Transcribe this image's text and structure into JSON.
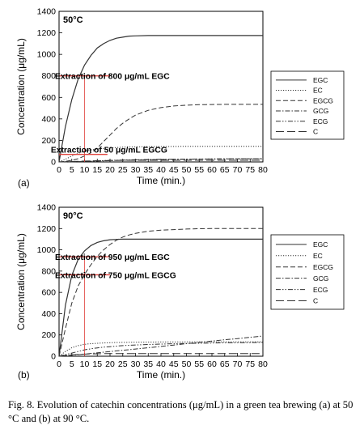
{
  "caption": "Fig. 8. Evolution of catechin concentrations (μg/mL) in a green tea brewing (a) at 50 °C and (b) at 90 °C.",
  "chart_data": [
    {
      "type": "line",
      "panel_label": "(a)",
      "inset_label": "50°C",
      "xlabel": "Time (min.)",
      "ylabel": "Concentration (μg/mL)",
      "xlim": [
        0,
        80
      ],
      "ylim": [
        0,
        1400
      ],
      "xticks": [
        0,
        5,
        10,
        15,
        20,
        25,
        30,
        35,
        40,
        45,
        50,
        55,
        60,
        65,
        70,
        75,
        80
      ],
      "yticks": [
        0,
        200,
        400,
        600,
        800,
        1000,
        1200,
        1400
      ],
      "grid": false,
      "legend_position": "right",
      "x": [
        0,
        2.5,
        5,
        7.5,
        10,
        12.5,
        15,
        17.5,
        20,
        22.5,
        25,
        27.5,
        30,
        35,
        40,
        45,
        50,
        55,
        60,
        65,
        70,
        75,
        80
      ],
      "series": [
        {
          "name": "EGC",
          "dash": "solid",
          "values": [
            0,
            330,
            580,
            770,
            900,
            990,
            1060,
            1100,
            1130,
            1150,
            1160,
            1170,
            1172,
            1175,
            1175,
            1175,
            1175,
            1175,
            1175,
            1175,
            1175,
            1175,
            1175
          ]
        },
        {
          "name": "EC",
          "dash": "dotted",
          "values": [
            0,
            25,
            55,
            80,
            100,
            112,
            120,
            126,
            130,
            134,
            137,
            139,
            140,
            142,
            143,
            144,
            145,
            145,
            145,
            145,
            145,
            145,
            145
          ]
        },
        {
          "name": "EGCG",
          "dash": "dashed",
          "values": [
            0,
            5,
            15,
            30,
            55,
            85,
            130,
            190,
            250,
            310,
            360,
            400,
            435,
            480,
            505,
            520,
            528,
            532,
            534,
            535,
            535,
            535,
            535
          ]
        },
        {
          "name": "GCG",
          "dash": "dashdot",
          "values": [
            0,
            1,
            2,
            3,
            5,
            6,
            8,
            10,
            12,
            14,
            15,
            17,
            18,
            20,
            22,
            24,
            25,
            26,
            27,
            28,
            28,
            29,
            29
          ]
        },
        {
          "name": "ECG",
          "dash": "dashdotdot",
          "values": [
            0,
            1,
            2,
            4,
            6,
            8,
            10,
            12,
            14,
            16,
            18,
            19,
            20,
            22,
            24,
            25,
            26,
            27,
            28,
            29,
            30,
            30,
            30
          ]
        },
        {
          "name": "C",
          "dash": "longdash",
          "values": [
            0,
            2,
            4,
            6,
            8,
            10,
            11,
            12,
            13,
            14,
            14,
            15,
            15,
            15,
            15,
            15,
            15,
            15,
            15,
            15,
            15,
            15,
            15
          ]
        }
      ],
      "annotations": [
        {
          "text": "Extraction of 800 μg/mL EGC",
          "y": 800,
          "x_from": 0,
          "x_to": 20
        },
        {
          "text": "Extraction of 50 μg/mL EGCG",
          "y": 70,
          "x_from": 0,
          "x_to": 19
        }
      ],
      "marker_vline_x": 10
    },
    {
      "type": "line",
      "panel_label": "(b)",
      "inset_label": "90°C",
      "xlabel": "Time (min.)",
      "ylabel": "Concentration (μg/mL)",
      "xlim": [
        0,
        80
      ],
      "ylim": [
        0,
        1400
      ],
      "xticks": [
        0,
        5,
        10,
        15,
        20,
        25,
        30,
        35,
        40,
        45,
        50,
        55,
        60,
        65,
        70,
        75,
        80
      ],
      "yticks": [
        0,
        200,
        400,
        600,
        800,
        1000,
        1200,
        1400
      ],
      "grid": false,
      "legend_position": "right",
      "x": [
        0,
        2.5,
        5,
        7.5,
        10,
        12.5,
        15,
        17.5,
        20,
        22.5,
        25,
        27.5,
        30,
        35,
        40,
        45,
        50,
        55,
        60,
        65,
        70,
        75,
        80
      ],
      "series": [
        {
          "name": "EGC",
          "dash": "solid",
          "values": [
            0,
            480,
            760,
            910,
            990,
            1040,
            1070,
            1085,
            1095,
            1098,
            1100,
            1100,
            1100,
            1100,
            1100,
            1100,
            1100,
            1100,
            1100,
            1100,
            1100,
            1100,
            1100
          ]
        },
        {
          "name": "EC",
          "dash": "dotted",
          "values": [
            0,
            45,
            80,
            100,
            112,
            118,
            122,
            125,
            127,
            129,
            130,
            131,
            132,
            133,
            134,
            134,
            135,
            135,
            135,
            135,
            135,
            135,
            135
          ]
        },
        {
          "name": "EGCG",
          "dash": "dashed",
          "values": [
            0,
            260,
            500,
            660,
            770,
            860,
            940,
            1000,
            1050,
            1090,
            1120,
            1140,
            1155,
            1175,
            1185,
            1190,
            1195,
            1198,
            1200,
            1200,
            1200,
            1200,
            1200
          ]
        },
        {
          "name": "GCG",
          "dash": "dashdot",
          "values": [
            0,
            5,
            10,
            15,
            20,
            26,
            32,
            38,
            44,
            50,
            56,
            62,
            68,
            80,
            92,
            105,
            118,
            130,
            142,
            155,
            165,
            178,
            190
          ]
        },
        {
          "name": "ECG",
          "dash": "dashdotdot",
          "values": [
            0,
            15,
            30,
            45,
            60,
            70,
            78,
            85,
            90,
            95,
            100,
            103,
            106,
            110,
            114,
            117,
            120,
            122,
            124,
            126,
            127,
            128,
            130
          ]
        },
        {
          "name": "C",
          "dash": "longdash",
          "values": [
            0,
            8,
            14,
            18,
            20,
            22,
            23,
            24,
            25,
            25,
            25,
            25,
            25,
            25,
            25,
            25,
            25,
            25,
            25,
            25,
            25,
            25,
            25
          ]
        }
      ],
      "annotations": [
        {
          "text": "Extraction of 950 μg/mL EGC",
          "y": 935,
          "x_from": 0,
          "x_to": 20
        },
        {
          "text": "Extraction of 750 μg/mL EGCG",
          "y": 765,
          "x_from": 0,
          "x_to": 20
        }
      ],
      "marker_vline_x": 10
    }
  ]
}
